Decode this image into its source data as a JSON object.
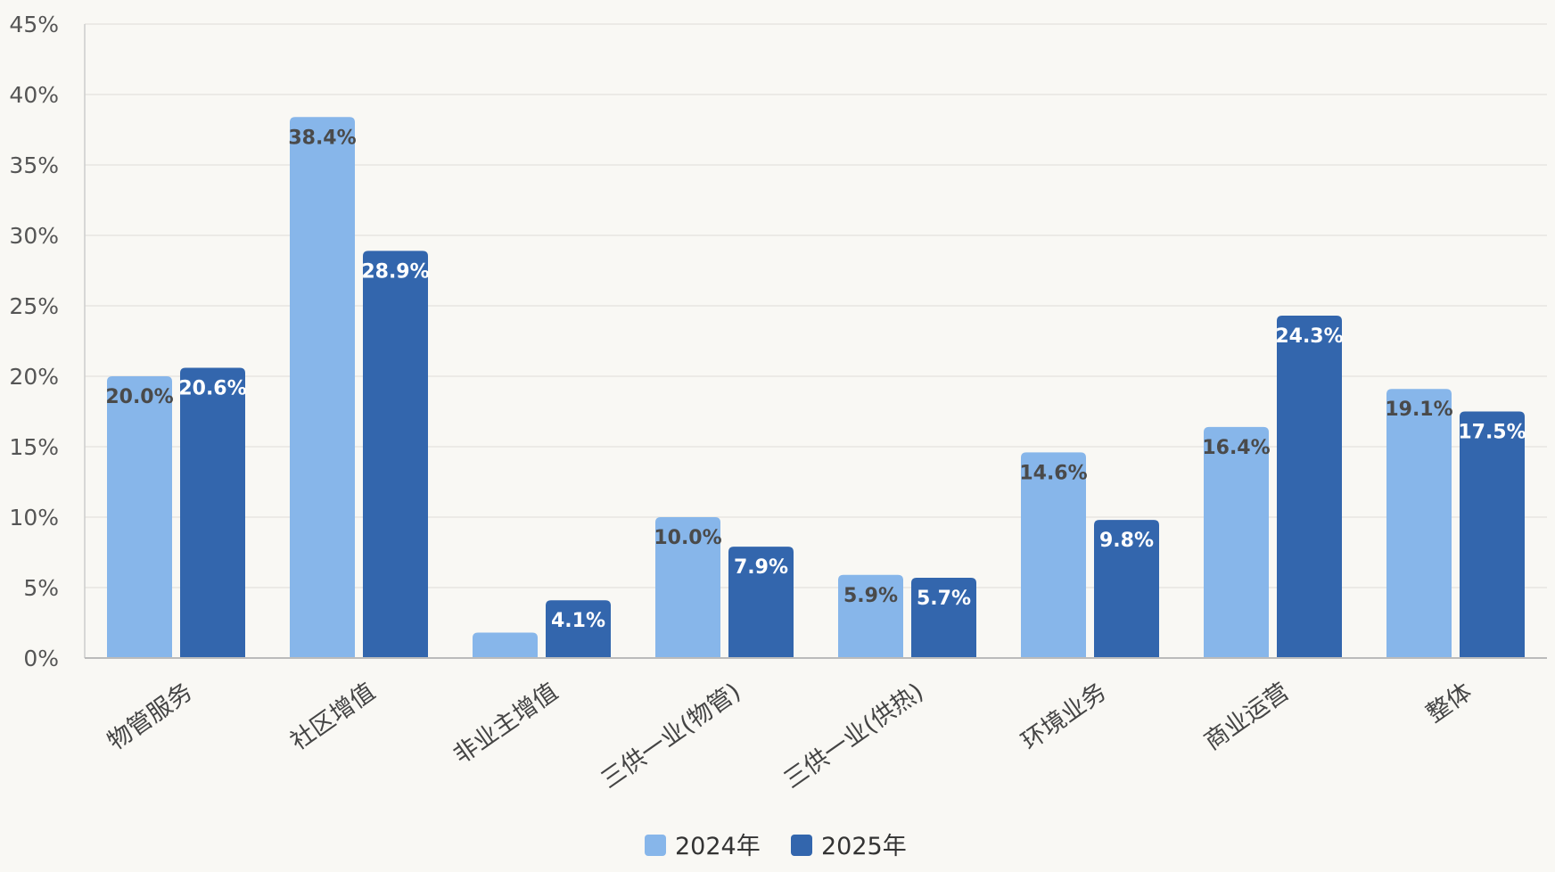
{
  "chart_data": {
    "type": "bar",
    "categories": [
      "物管服务",
      "社区增值",
      "非业主增值",
      "三供一业(物管)",
      "三供一业(供热)",
      "环境业务",
      "商业运营",
      "整体"
    ],
    "series": [
      {
        "name": "2024年",
        "values": [
          20.0,
          38.4,
          1.8,
          10.0,
          5.9,
          14.6,
          16.4,
          19.1
        ],
        "labels": [
          "20.0%",
          "38.4%",
          "",
          "10.0%",
          "5.9%",
          "14.6%",
          "16.4%",
          "19.1%"
        ],
        "color": "#87b6ea",
        "label_color": "#4a4a4a"
      },
      {
        "name": "2025年",
        "values": [
          20.6,
          28.9,
          4.1,
          7.9,
          5.7,
          9.8,
          24.3,
          17.5
        ],
        "labels": [
          "20.6%",
          "28.9%",
          "4.1%",
          "7.9%",
          "5.7%",
          "9.8%",
          "24.3%",
          "17.5%"
        ],
        "color": "#3366ad",
        "label_color": "#ffffff"
      }
    ],
    "y_ticks": [
      "0%",
      "5%",
      "10%",
      "15%",
      "20%",
      "25%",
      "30%",
      "35%",
      "40%",
      "45%"
    ],
    "ylim": [
      0,
      45
    ],
    "grid": true,
    "legend_position": "bottom-center",
    "background": "#f9f8f4"
  }
}
